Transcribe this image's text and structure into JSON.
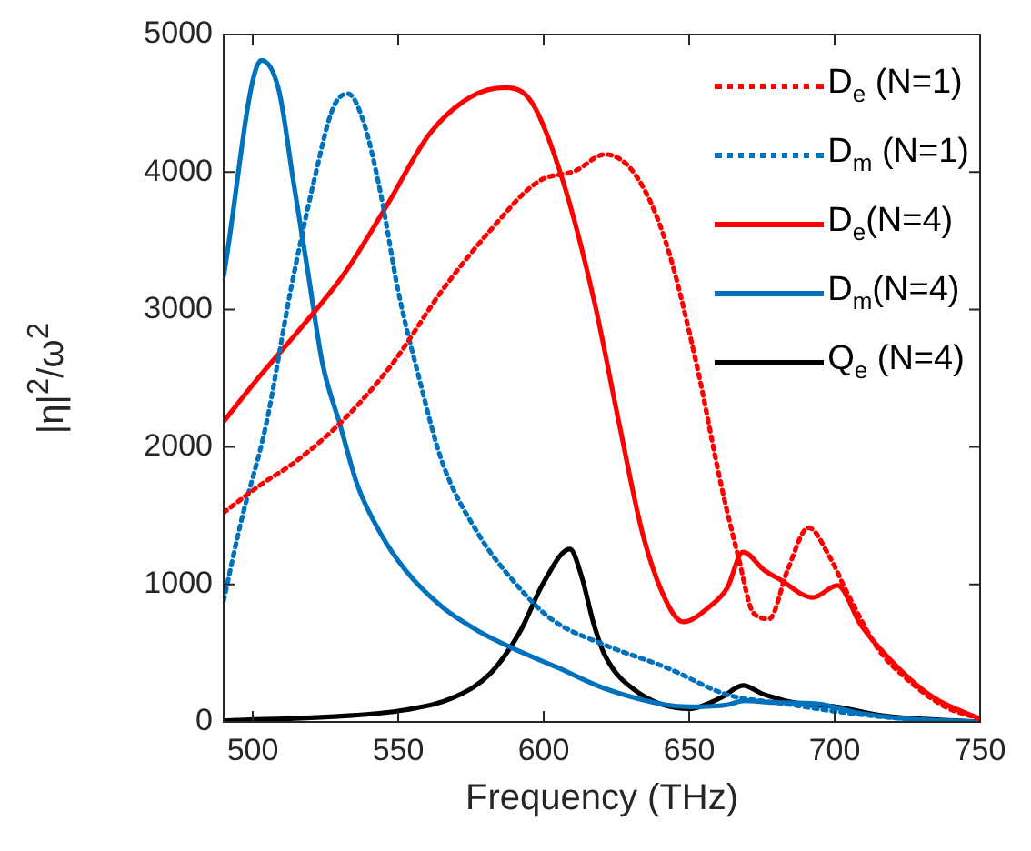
{
  "chart_data": {
    "type": "line",
    "xlabel": "Frequency (THz)",
    "ylabel": "|η|$^{2}$/ω$^{2}$",
    "xlim": [
      490,
      750
    ],
    "xticks": [
      500,
      550,
      600,
      650,
      700,
      750
    ],
    "ylim": [
      0,
      5000
    ],
    "yticks": [
      0,
      1000,
      2000,
      3000,
      4000,
      5000
    ],
    "grid": false,
    "legend": "top right",
    "marker": "none",
    "series": [
      {
        "name": "D$_{e}$ (N=1)",
        "color": "#ff0000",
        "line_style": "dotted",
        "x": [
          490,
          502.5,
          515,
          531.7,
          548,
          565,
          581.7,
          598,
          611,
          621,
          631.7,
          642,
          652.5,
          661,
          667,
          672,
          677.5,
          683.8,
          691,
          698.5,
          704.6,
          715,
          725,
          738,
          750
        ],
        "values": [
          1523,
          1722,
          1898,
          2208,
          2605,
          3135,
          3576,
          3929,
          4010,
          4128,
          3974,
          3488,
          2605,
          1722,
          1192,
          795,
          750,
          1104,
          1413,
          1192,
          927,
          530,
          309,
          110,
          22
        ]
      },
      {
        "name": "D$_{m}$ (N=1)",
        "color": "#0072bd",
        "line_style": "dotted",
        "x": [
          490,
          496,
          504.6,
          513,
          521,
          527.5,
          532.7,
          538,
          544,
          550,
          557,
          565,
          577.5,
          590,
          602.5,
          621,
          642,
          663,
          683,
          704,
          725,
          750
        ],
        "values": [
          883,
          1457,
          2163,
          3135,
          3929,
          4459,
          4570,
          4371,
          3841,
          3135,
          2517,
          1898,
          1369,
          1015,
          750,
          560,
          397,
          199,
          132,
          66,
          22,
          0
        ]
      },
      {
        "name": "D$_{e}$(N=4)",
        "color": "#ff0000",
        "line_style": "solid",
        "x": [
          490,
          502.5,
          515,
          531.7,
          546,
          561,
          575,
          587,
          596,
          606.7,
          617.5,
          626,
          634,
          642,
          648,
          657,
          663,
          668.5,
          675.8,
          681,
          692.5,
          701,
          709,
          721.7,
          734,
          750
        ],
        "values": [
          2185,
          2517,
          2826,
          3267,
          3753,
          4283,
          4547,
          4614,
          4503,
          3929,
          3047,
          2163,
          1369,
          883,
          728,
          839,
          971,
          1236,
          1104,
          1038,
          905,
          993,
          706,
          397,
          177,
          22
        ]
      },
      {
        "name": "D$_{m}$(N=4)",
        "color": "#0072bd",
        "line_style": "solid",
        "x": [
          490,
          503,
          509,
          514,
          519,
          524,
          530,
          536,
          544,
          552.5,
          565,
          577.5,
          590,
          604.6,
          621,
          642,
          650,
          663,
          669,
          679,
          694,
          708,
          725,
          750
        ],
        "values": [
          3245,
          4812,
          4592,
          3929,
          3267,
          2605,
          2163,
          1722,
          1369,
          1104,
          839,
          662,
          530,
          397,
          243,
          124,
          110,
          124,
          155,
          141,
          132,
          66,
          22,
          0
        ]
      },
      {
        "name": "Q$_{e}$ (N=4)",
        "color": "#000000",
        "line_style": "solid",
        "x": [
          490,
          531.7,
          552.5,
          569,
          581.7,
          592,
          600,
          609,
          613,
          617,
          621,
          632,
          650,
          661,
          668.5,
          675.8,
          688,
          700.4,
          717,
          750
        ],
        "values": [
          9,
          44,
          88,
          177,
          353,
          662,
          1015,
          1258,
          1060,
          728,
          486,
          221,
          97,
          177,
          265,
          199,
          132,
          110,
          44,
          0
        ]
      }
    ]
  }
}
